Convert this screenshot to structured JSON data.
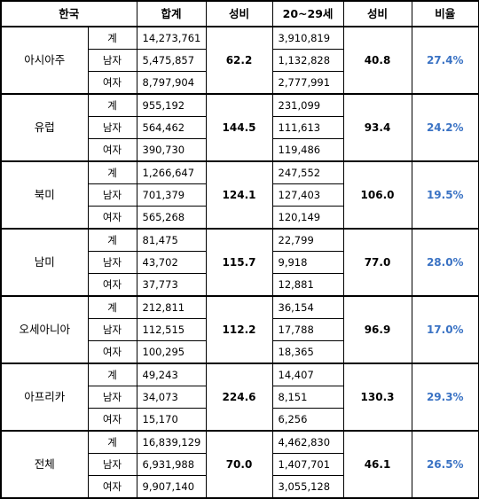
{
  "headers": [
    "한국",
    "합계",
    "성비",
    "20~29세",
    "성비",
    "비율"
  ],
  "regions": [
    {
      "name": "아시아주",
      "sex_ratio_total": "62.2",
      "sex_ratio_20s": "40.8",
      "share": "27.4%",
      "rows": [
        {
          "label": "계",
          "total": "14,273,761",
          "age20s": "3,910,819"
        },
        {
          "label": "남자",
          "total": "5,475,857",
          "age20s": "1,132,828"
        },
        {
          "label": "여자",
          "total": "8,797,904",
          "age20s": "2,777,991"
        }
      ]
    },
    {
      "name": "유럽",
      "sex_ratio_total": "144.5",
      "sex_ratio_20s": "93.4",
      "share": "24.2%",
      "rows": [
        {
          "label": "계",
          "total": "955,192",
          "age20s": "231,099"
        },
        {
          "label": "남자",
          "total": "564,462",
          "age20s": "111,613"
        },
        {
          "label": "여자",
          "total": "390,730",
          "age20s": "119,486"
        }
      ]
    },
    {
      "name": "북미",
      "sex_ratio_total": "124.1",
      "sex_ratio_20s": "106.0",
      "share": "19.5%",
      "rows": [
        {
          "label": "계",
          "total": "1,266,647",
          "age20s": "247,552"
        },
        {
          "label": "남자",
          "total": "701,379",
          "age20s": "127,403"
        },
        {
          "label": "여자",
          "total": "565,268",
          "age20s": "120,149"
        }
      ]
    },
    {
      "name": "남미",
      "sex_ratio_total": "115.7",
      "sex_ratio_20s": "77.0",
      "share": "28.0%",
      "rows": [
        {
          "label": "계",
          "total": "81,475",
          "age20s": "22,799"
        },
        {
          "label": "남자",
          "total": "43,702",
          "age20s": "9,918"
        },
        {
          "label": "여자",
          "total": "37,773",
          "age20s": "12,881"
        }
      ]
    },
    {
      "name": "오세아니아",
      "sex_ratio_total": "112.2",
      "sex_ratio_20s": "96.9",
      "share": "17.0%",
      "rows": [
        {
          "label": "계",
          "total": "212,811",
          "age20s": "36,154"
        },
        {
          "label": "남자",
          "total": "112,515",
          "age20s": "17,788"
        },
        {
          "label": "여자",
          "total": "100,295",
          "age20s": "18,365"
        }
      ]
    },
    {
      "name": "아프리카",
      "sex_ratio_total": "224.6",
      "sex_ratio_20s": "130.3",
      "share": "29.3%",
      "rows": [
        {
          "label": "계",
          "total": "49,243",
          "age20s": "14,407"
        },
        {
          "label": "남자",
          "total": "34,073",
          "age20s": "8,151"
        },
        {
          "label": "여자",
          "total": "15,170",
          "age20s": "6,256"
        }
      ]
    },
    {
      "name": "전체",
      "sex_ratio_total": "70.0",
      "sex_ratio_20s": "46.1",
      "share": "26.5%",
      "rows": [
        {
          "label": "계",
          "total": "16,839,129",
          "age20s": "4,462,830"
        },
        {
          "label": "남자",
          "total": "6,931,988",
          "age20s": "1,407,701"
        },
        {
          "label": "여자",
          "total": "9,907,140",
          "age20s": "3,055,128"
        }
      ]
    }
  ]
}
